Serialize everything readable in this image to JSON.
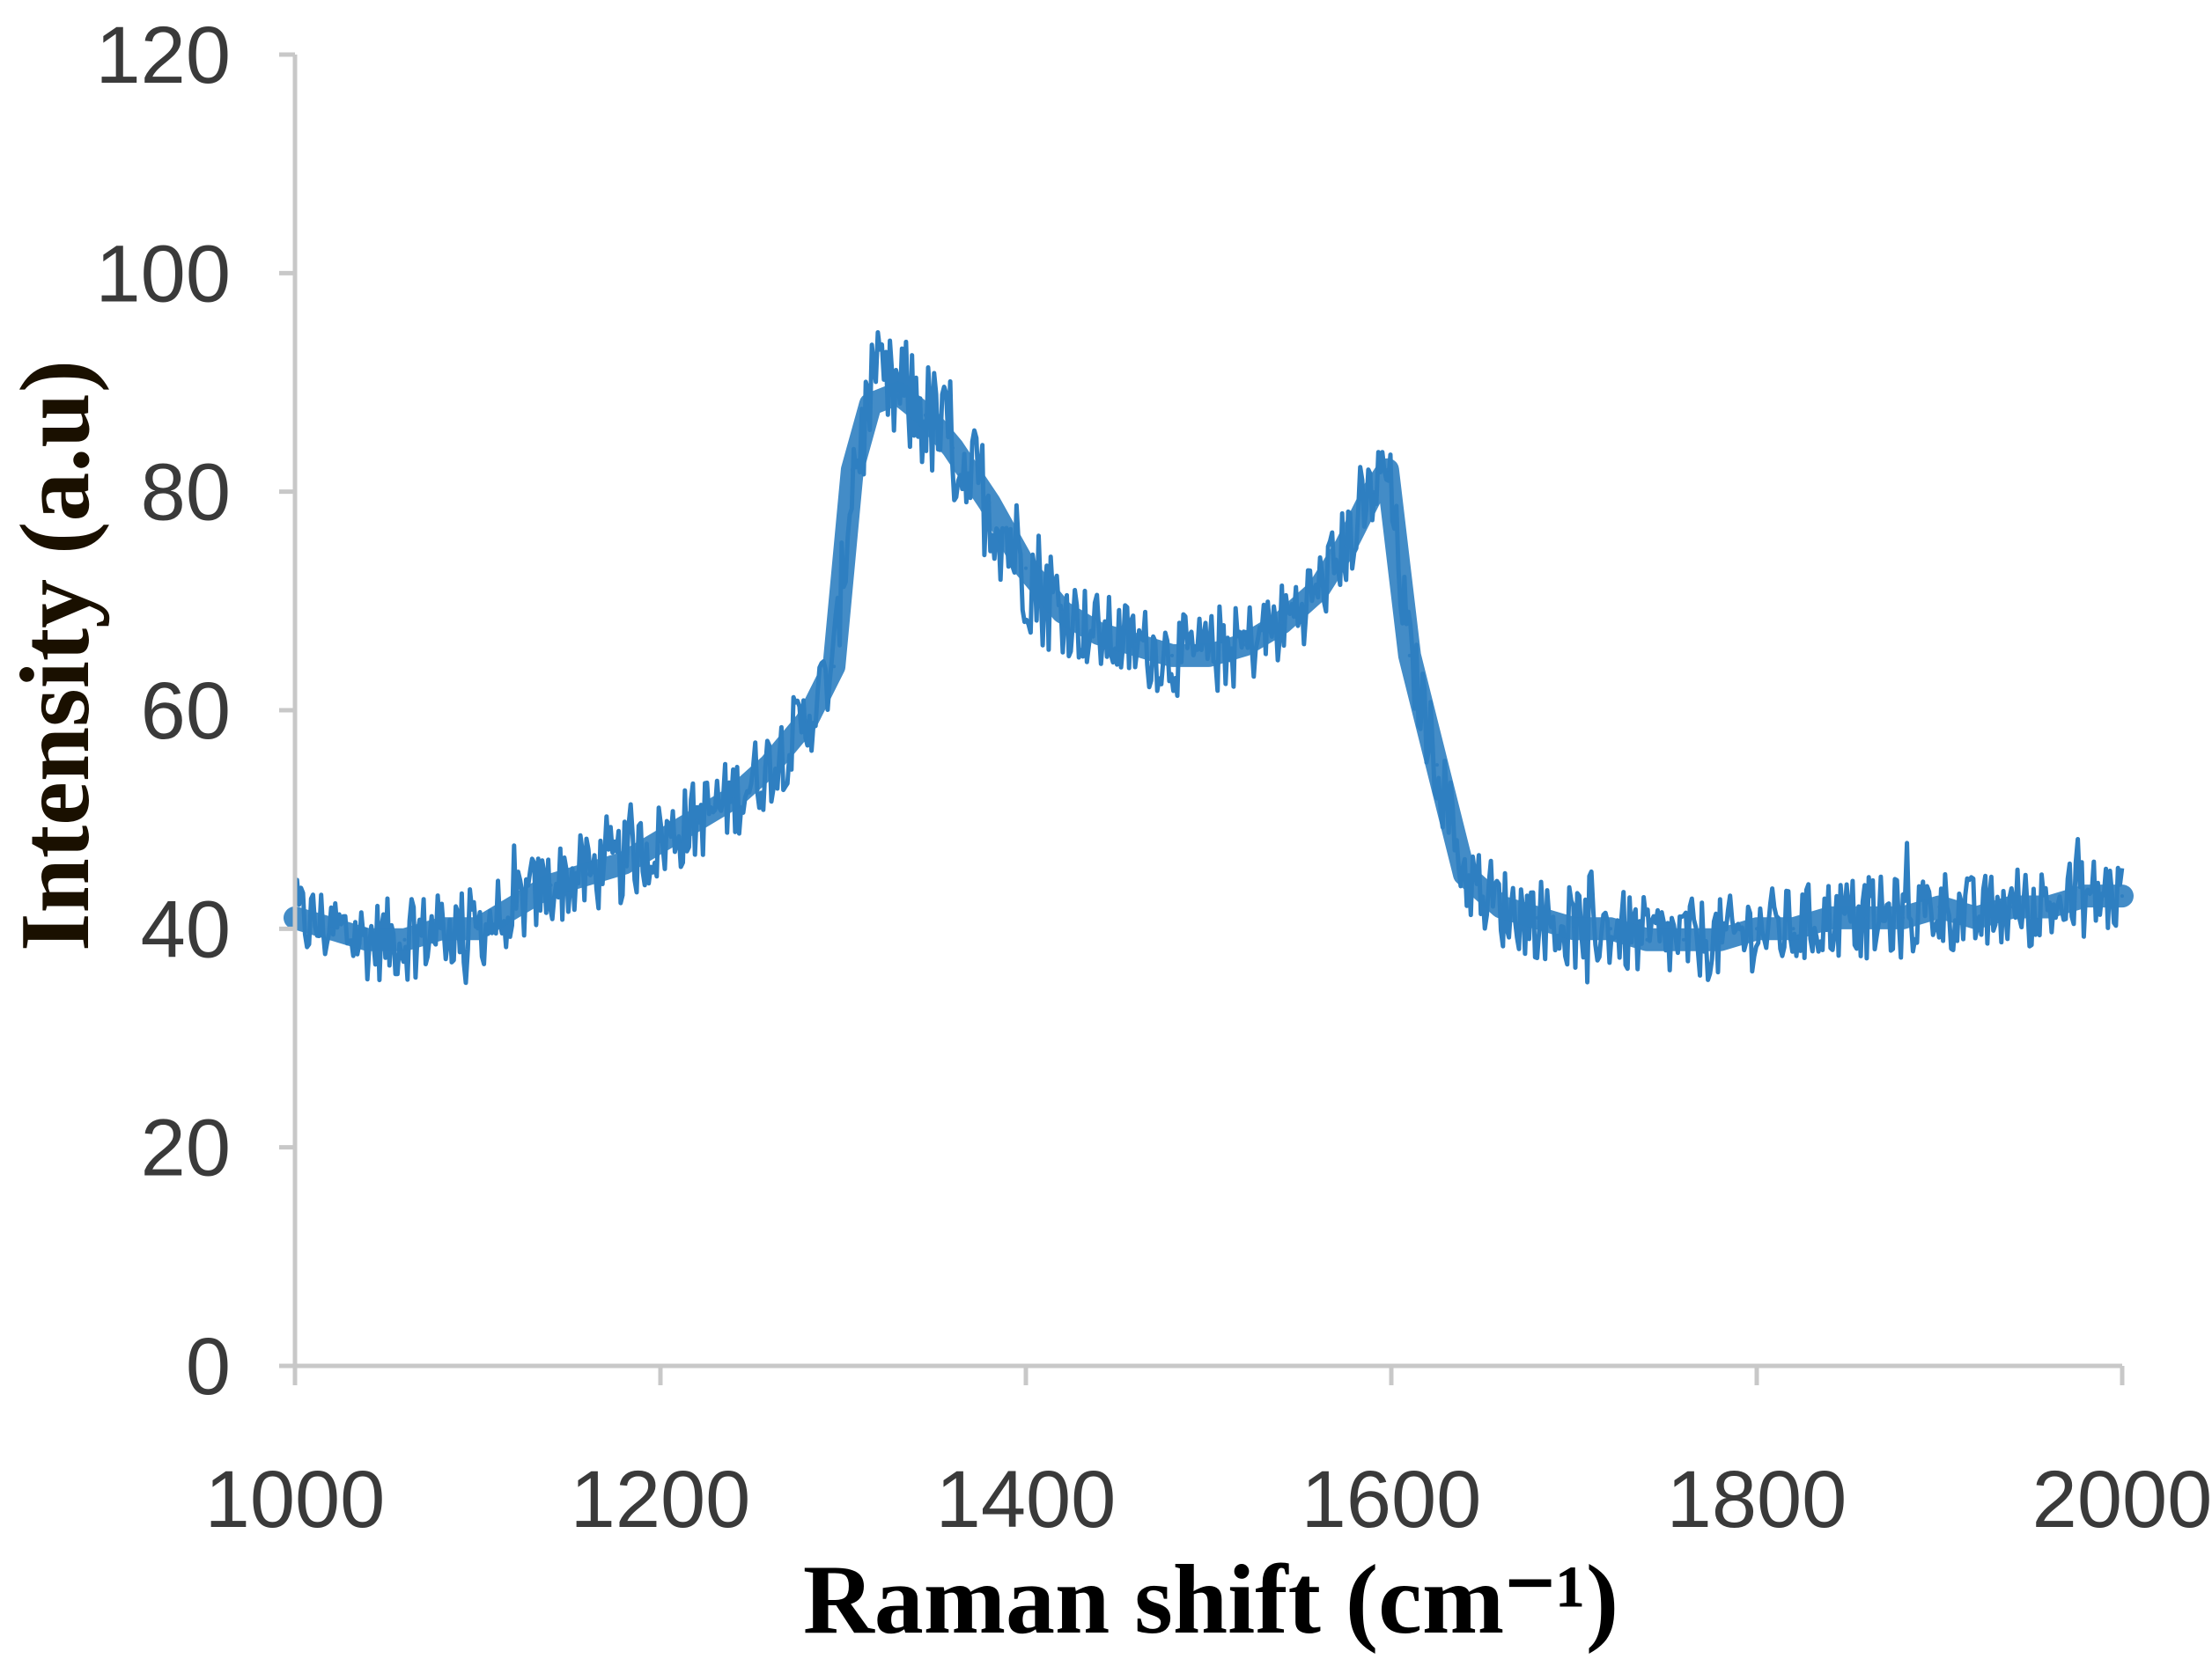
{
  "chart_data": {
    "type": "line",
    "title": "",
    "xlabel": "Raman shift (cm⁻¹)",
    "ylabel": "Intensity (a.u)",
    "xlim": [
      1000,
      2000
    ],
    "ylim": [
      0,
      120
    ],
    "xticks": [
      "1000",
      "1200",
      "1400",
      "1600",
      "1800",
      "2000"
    ],
    "yticks": [
      "0",
      "20",
      "40",
      "60",
      "80",
      "100",
      "120"
    ],
    "grid": false,
    "legend": "none",
    "series": [
      {
        "color": "#2f7fc1",
        "x": [
          1000,
          1020,
          1040,
          1060,
          1080,
          1100,
          1120,
          1140,
          1160,
          1180,
          1200,
          1220,
          1240,
          1260,
          1280,
          1295,
          1305,
          1315,
          1330,
          1345,
          1360,
          1380,
          1400,
          1420,
          1440,
          1460,
          1480,
          1500,
          1520,
          1540,
          1560,
          1575,
          1590,
          1598,
          1610,
          1625,
          1640,
          1660,
          1680,
          1700,
          1720,
          1740,
          1760,
          1780,
          1800,
          1820,
          1840,
          1860,
          1880,
          1900,
          1920,
          1940,
          1960,
          1980,
          2000
        ],
        "values": [
          41,
          40,
          39,
          39,
          40,
          40,
          42,
          44,
          45,
          46,
          48,
          50,
          52,
          55,
          59,
          64,
          82,
          88,
          89,
          87,
          84,
          79,
          73,
          69,
          67,
          66,
          65,
          65,
          66,
          68,
          71,
          75,
          80,
          82,
          65,
          55,
          45,
          42,
          41,
          40,
          40,
          39,
          39,
          39,
          40,
          40,
          41,
          41,
          41,
          42,
          41,
          42,
          42,
          43,
          43
        ]
      }
    ]
  }
}
